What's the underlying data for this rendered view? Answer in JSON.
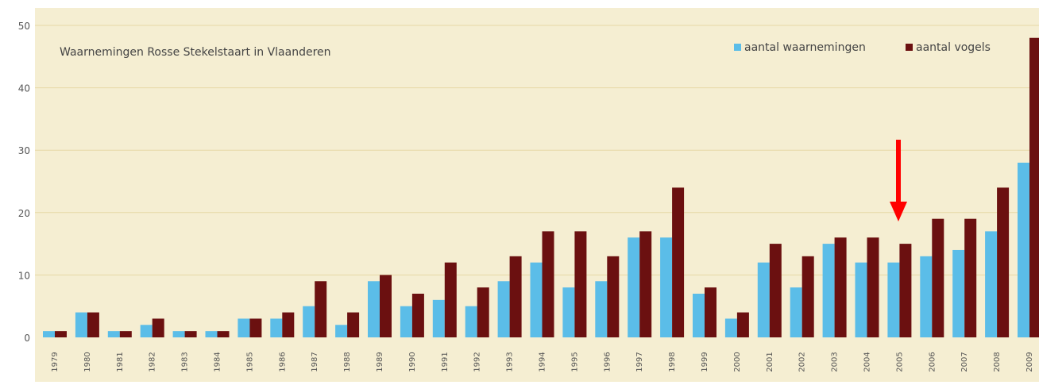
{
  "chart_data": {
    "type": "bar",
    "title": "Waarnemingen Rosse Stekelstaart in Vlaanderen",
    "categories": [
      "1979",
      "1980",
      "1981",
      "1982",
      "1983",
      "1984",
      "1985",
      "1986",
      "1987",
      "1988",
      "1989",
      "1990",
      "1991",
      "1992",
      "1993",
      "1994",
      "1995",
      "1996",
      "1997",
      "1998",
      "1999",
      "2000",
      "2001",
      "2002",
      "2003",
      "2004",
      "2005",
      "2006",
      "2007",
      "2008",
      "2009"
    ],
    "series": [
      {
        "name": "aantal waarnemingen",
        "color": "#5bbde8",
        "values": [
          1,
          4,
          1,
          2,
          1,
          1,
          3,
          3,
          5,
          2,
          9,
          5,
          6,
          5,
          9,
          12,
          8,
          9,
          16,
          16,
          7,
          3,
          12,
          8,
          15,
          12,
          12,
          13,
          14,
          17,
          28
        ]
      },
      {
        "name": "aantal vogels",
        "color": "#6b1010",
        "values": [
          1,
          4,
          1,
          3,
          1,
          1,
          3,
          4,
          9,
          4,
          10,
          7,
          12,
          8,
          13,
          17,
          17,
          13,
          17,
          24,
          8,
          4,
          15,
          13,
          16,
          16,
          15,
          19,
          19,
          24,
          48
        ]
      }
    ],
    "yticks": [
      "0",
      "10",
      "20",
      "30",
      "40",
      "50"
    ],
    "ylim": [
      0,
      50
    ],
    "grid": true,
    "legend": "top-right",
    "background": "#f5eed2",
    "gridline_color": "#e6d8a6",
    "annotation": {
      "type": "arrow",
      "color": "#ff0000",
      "target_category": "2005"
    }
  }
}
